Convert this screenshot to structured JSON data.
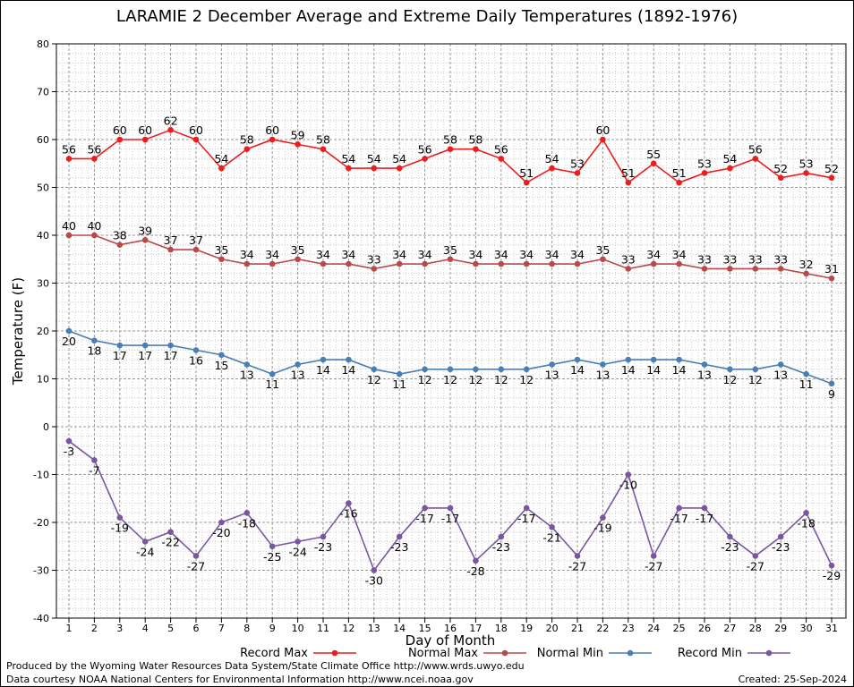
{
  "chart_data": {
    "type": "line",
    "title": "LARAMIE 2 December Average and Extreme Daily Temperatures (1892-1976)",
    "xlabel": "Day of Month",
    "ylabel": "Temperature (F)",
    "ylim": [
      -40,
      80
    ],
    "yticks": [
      -40,
      -30,
      -20,
      -10,
      0,
      10,
      20,
      30,
      40,
      50,
      60,
      70,
      80
    ],
    "x": [
      1,
      2,
      3,
      4,
      5,
      6,
      7,
      8,
      9,
      10,
      11,
      12,
      13,
      14,
      15,
      16,
      17,
      18,
      19,
      20,
      21,
      22,
      23,
      24,
      25,
      26,
      27,
      28,
      29,
      30,
      31
    ],
    "grid": true,
    "legend_position": "bottom",
    "series": [
      {
        "name": "Record Max",
        "color": "#ee1c1c",
        "values": [
          56,
          56,
          60,
          60,
          62,
          60,
          54,
          58,
          60,
          59,
          58,
          54,
          54,
          54,
          56,
          58,
          58,
          56,
          51,
          54,
          53,
          60,
          51,
          55,
          51,
          53,
          54,
          56,
          52,
          53,
          52
        ]
      },
      {
        "name": "Normal Max",
        "color": "#b84a4a",
        "values": [
          40,
          40,
          38,
          39,
          37,
          37,
          35,
          34,
          34,
          35,
          34,
          34,
          33,
          34,
          34,
          35,
          34,
          34,
          34,
          34,
          34,
          35,
          33,
          34,
          34,
          33,
          33,
          33,
          33,
          32,
          31
        ]
      },
      {
        "name": "Normal Min",
        "color": "#4a7fb5",
        "values": [
          20,
          18,
          17,
          17,
          17,
          16,
          15,
          13,
          11,
          13,
          14,
          14,
          12,
          11,
          12,
          12,
          12,
          12,
          12,
          13,
          14,
          13,
          14,
          14,
          14,
          13,
          12,
          12,
          13,
          11,
          9
        ]
      },
      {
        "name": "Record Min",
        "color": "#7b56a0",
        "values": [
          -3,
          -7,
          -19,
          -24,
          -22,
          -27,
          -20,
          -18,
          -25,
          -24,
          -23,
          -16,
          -30,
          -23,
          -17,
          -17,
          -28,
          -23,
          -17,
          -21,
          -27,
          -19,
          -10,
          -27,
          -17,
          -17,
          -23,
          -27,
          -23,
          -18,
          -29
        ]
      }
    ]
  },
  "footer": {
    "line1": "Produced by the Wyoming Water Resources Data System/State Climate Office http://www.wrds.uwyo.edu",
    "line2": "Data courtesy NOAA National Centers for Environmental Information http://www.ncei.noaa.gov",
    "created": "Created: 25-Sep-2024"
  }
}
